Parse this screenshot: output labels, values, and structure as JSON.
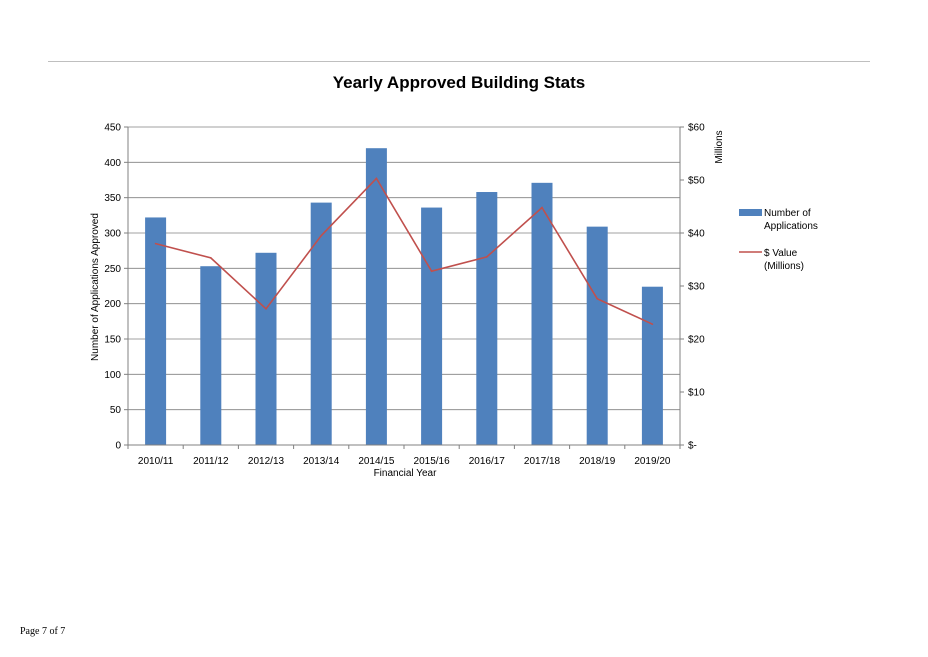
{
  "page": {
    "footer": "Page 7 of 7"
  },
  "colors": {
    "bar": "#4f81bd",
    "line": "#c0504d",
    "grid": "#808080",
    "text": "#000000"
  },
  "chart_data": {
    "type": "bar",
    "title": "Yearly Approved Building Stats",
    "xlabel": "Financial Year",
    "ylabel": "Number of Applications Approved",
    "y2label": "Millions",
    "categories": [
      "2010/11",
      "2011/12",
      "2012/13",
      "2013/14",
      "2014/15",
      "2015/16",
      "2016/17",
      "2017/18",
      "2018/19",
      "2019/20"
    ],
    "ylim": [
      0,
      450
    ],
    "yticks": [
      0,
      50,
      100,
      150,
      200,
      250,
      300,
      350,
      400,
      450
    ],
    "ytick_labels": [
      "0",
      "50",
      "100",
      "150",
      "200",
      "250",
      "300",
      "350",
      "400",
      "450"
    ],
    "y2lim": [
      0,
      60
    ],
    "y2ticks": [
      0,
      10,
      20,
      30,
      40,
      50,
      60
    ],
    "y2tick_labels": [
      "$-",
      "$10",
      "$20",
      "$30",
      "$40",
      "$50",
      "$60"
    ],
    "grid": true,
    "legend_position": "right",
    "series": [
      {
        "name": "Number of Applications",
        "type": "bar",
        "axis": "left",
        "values": [
          322,
          253,
          272,
          343,
          420,
          336,
          358,
          371,
          309,
          224
        ]
      },
      {
        "name": "$ Value (Millions)",
        "type": "line",
        "axis": "right",
        "values": [
          38.0,
          35.3,
          25.7,
          39.5,
          50.3,
          32.8,
          35.5,
          44.8,
          27.6,
          22.8
        ]
      }
    ]
  }
}
